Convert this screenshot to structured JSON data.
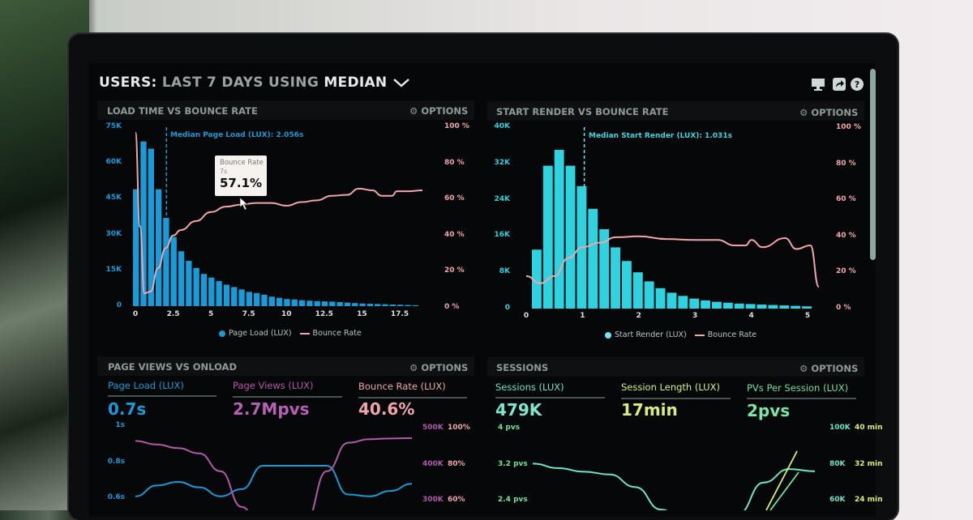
{
  "header": {
    "prefix": "USERS:",
    "range": "LAST 7 DAYS",
    "using": "USING",
    "stat": "MEDIAN",
    "chevron": "chevron-down-icon",
    "icons": [
      "monitor-icon",
      "share-icon",
      "help-icon"
    ]
  },
  "colors": {
    "page_load": "#1a9ad6",
    "bounce": "#f0a5ad",
    "start_render": "#2fd2df",
    "page_views": "#b05aa8",
    "sessions": "#6fe3c4",
    "session_length": "#d8f07a",
    "pvs_per_session": "#6fe3a0"
  },
  "panels": [
    {
      "title": "LOAD TIME VS BOUNCE RATE",
      "options": "OPTIONS"
    },
    {
      "title": "START RENDER VS BOUNCE RATE",
      "options": "OPTIONS"
    },
    {
      "title": "PAGE VIEWS VS ONLOAD",
      "options": "OPTIONS"
    },
    {
      "title": "SESSIONS",
      "options": "OPTIONS"
    }
  ],
  "tooltip": {
    "title": "Bounce Rate",
    "sub": "7s",
    "value": "57.1%"
  },
  "chart_data": [
    {
      "type": "bar",
      "title": "LOAD TIME VS BOUNCE RATE",
      "median_label": "Median Page Load (LUX): 2.056s",
      "median": 2.056,
      "x_ticks": [
        "0",
        "2.5",
        "5",
        "7.5",
        "10",
        "12.5",
        "15",
        "17.5"
      ],
      "y_ticks_left": [
        "0",
        "15K",
        "30K",
        "45K",
        "60K",
        "75K"
      ],
      "y_ticks_right": [
        "0 %",
        "20 %",
        "40 %",
        "60 %",
        "80 %",
        "100 %"
      ],
      "xlim": [
        0,
        19.5
      ],
      "ylim": [
        0,
        75000
      ],
      "y2lim": [
        0,
        100
      ],
      "legend": [
        "Page Load (LUX)",
        "Bounce Rate"
      ],
      "bar_width": 0.5,
      "bars": [
        49000,
        69000,
        66000,
        49000,
        37000,
        29000,
        23000,
        19000,
        16000,
        13500,
        12000,
        10500,
        9000,
        8000,
        7000,
        6000,
        5500,
        4800,
        4000,
        3500,
        3000,
        2800,
        2500,
        2300,
        2100,
        2000,
        1900,
        1700,
        1500,
        1300,
        1100,
        1000,
        900,
        800,
        700,
        600,
        500,
        400
      ],
      "bounce_rate": [
        [
          0,
          97
        ],
        [
          0.3,
          45
        ],
        [
          0.6,
          8
        ],
        [
          1,
          9
        ],
        [
          1.5,
          22
        ],
        [
          2,
          33
        ],
        [
          2.5,
          40
        ],
        [
          3,
          43
        ],
        [
          4,
          48
        ],
        [
          5,
          53
        ],
        [
          6,
          56
        ],
        [
          7,
          57.1
        ],
        [
          8,
          58
        ],
        [
          9,
          58
        ],
        [
          10,
          56.5
        ],
        [
          11,
          58.5
        ],
        [
          12,
          59.5
        ],
        [
          13,
          62
        ],
        [
          14,
          62.5
        ],
        [
          14.8,
          66
        ],
        [
          15.7,
          65
        ],
        [
          16.3,
          62
        ],
        [
          17,
          62
        ],
        [
          17.3,
          64.5
        ],
        [
          18,
          64.5
        ],
        [
          19,
          65
        ]
      ]
    },
    {
      "type": "bar",
      "title": "START RENDER VS BOUNCE RATE",
      "median_label": "Median Start Render (LUX): 1.031s",
      "median": 1.031,
      "x_ticks": [
        "0",
        "1",
        "2",
        "3",
        "4",
        "5"
      ],
      "y_ticks_left": [
        "0",
        "8K",
        "16K",
        "24K",
        "32K",
        "40K"
      ],
      "y_ticks_right": [
        "0 %",
        "20 %",
        "40 %",
        "60 %",
        "80 %",
        "100 %"
      ],
      "xlim": [
        0,
        5.3
      ],
      "ylim": [
        0,
        40000
      ],
      "y2lim": [
        0,
        100
      ],
      "legend": [
        "Start Render (LUX)",
        "Bounce Rate"
      ],
      "bar_width": 0.2,
      "bars": [
        13000,
        31500,
        35000,
        31500,
        27000,
        22000,
        17500,
        13500,
        10500,
        8000,
        6000,
        4500,
        3500,
        2800,
        2200,
        1800,
        1500,
        1300,
        1100,
        1000,
        900,
        800,
        700,
        600,
        500
      ],
      "bounce_rate": [
        [
          0,
          18
        ],
        [
          0.25,
          14
        ],
        [
          0.5,
          18
        ],
        [
          0.75,
          28
        ],
        [
          1,
          34
        ],
        [
          1.3,
          36.5
        ],
        [
          1.6,
          39.5
        ],
        [
          2,
          40
        ],
        [
          2.5,
          38.5
        ],
        [
          3,
          38
        ],
        [
          3.4,
          38
        ],
        [
          3.7,
          35
        ],
        [
          3.9,
          35
        ],
        [
          4,
          38
        ],
        [
          4.2,
          34
        ],
        [
          4.6,
          39
        ],
        [
          4.8,
          33
        ],
        [
          5.05,
          35
        ],
        [
          5.2,
          12
        ]
      ]
    },
    {
      "type": "line",
      "title": "PAGE VIEWS VS ONLOAD",
      "y_ticks_left": [
        "1s",
        "0.8s",
        "0.6s"
      ],
      "y_ticks_right_a": [
        "500K",
        "400K",
        "300K"
      ],
      "y_ticks_right_b": [
        "100%",
        "80%",
        "60%"
      ],
      "series": [
        {
          "name": "Page Load (LUX)",
          "unit": "s",
          "values": [
            0.61,
            0.67,
            0.69,
            0.66,
            0.61,
            0.65,
            0.78,
            0.78,
            0.78,
            0.78,
            0.62,
            0.61,
            0.64,
            0.68
          ]
        },
        {
          "name": "Page Views (LUX)",
          "unit": "K",
          "values": [
            465,
            455,
            445,
            430,
            380,
            280,
            200,
            200,
            240,
            380,
            460,
            470,
            472,
            473
          ]
        }
      ]
    },
    {
      "type": "line",
      "title": "SESSIONS",
      "y_ticks_left": [
        "4 pvs",
        "3.2 pvs",
        "2.4 pvs"
      ],
      "y_ticks_right_a": [
        "100K",
        "80K",
        "60K"
      ],
      "y_ticks_right_b": [
        "40 min",
        "32 min",
        "24 min"
      ],
      "series": [
        {
          "name": "PVs Per Session (LUX)",
          "unit": "pvs",
          "values": [
            3.22,
            3.12,
            3.04,
            2.98,
            2.7,
            2.2,
            1.9,
            1.9,
            2.1,
            2.8,
            3.1,
            3.05
          ]
        }
      ]
    }
  ],
  "metrics_left": [
    {
      "label": "Page Load (LUX)",
      "value": "0.7s"
    },
    {
      "label": "Page Views (LUX)",
      "value": "2.7Mpvs"
    },
    {
      "label": "Bounce Rate (LUX)",
      "value": "40.6%"
    }
  ],
  "metrics_right": [
    {
      "label": "Sessions (LUX)",
      "value": "479K"
    },
    {
      "label": "Session Length (LUX)",
      "value": "17min"
    },
    {
      "label": "PVs Per Session (LUX)",
      "value": "2pvs"
    }
  ]
}
